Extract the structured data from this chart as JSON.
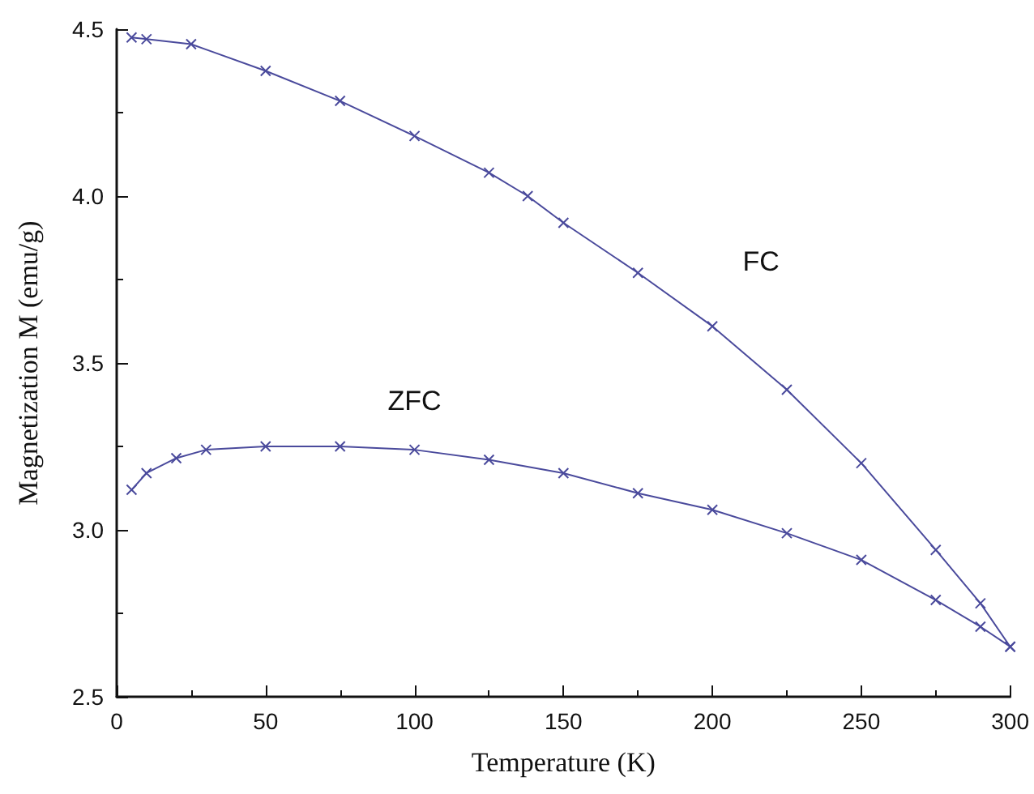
{
  "chart_data": {
    "type": "line",
    "xlabel": "Temperature (K)",
    "ylabel": "Magnetization M (emu/g)",
    "xlim": [
      0,
      300
    ],
    "xticks": [
      0,
      50,
      100,
      150,
      200,
      250,
      300
    ],
    "ylim": [
      2.5,
      4.5
    ],
    "yticks": [
      2.5,
      {
        "value": 3,
        "label": "3.0"
      },
      3.5,
      {
        "value": 4,
        "label": "4.0"
      },
      4.5
    ],
    "grid": false,
    "legend": false,
    "marker": "cross",
    "line_style": "solid",
    "series": [
      {
        "name": "FC",
        "color": "#4a4a9c",
        "x": [
          5,
          10,
          25,
          50,
          75,
          100,
          125,
          138,
          150,
          175,
          200,
          225,
          250,
          275,
          290,
          300
        ],
        "values": [
          4.475,
          4.47,
          4.455,
          4.375,
          4.285,
          4.18,
          4.07,
          4.0,
          3.92,
          3.77,
          3.61,
          3.42,
          3.2,
          2.94,
          2.78,
          2.65
        ]
      },
      {
        "name": "ZFC",
        "color": "#4a4a9c",
        "x": [
          5,
          10,
          20,
          30,
          50,
          75,
          100,
          125,
          150,
          175,
          200,
          225,
          250,
          275,
          290,
          300
        ],
        "values": [
          3.12,
          3.17,
          3.215,
          3.24,
          3.25,
          3.25,
          3.24,
          3.21,
          3.17,
          3.11,
          3.06,
          2.99,
          2.91,
          2.79,
          2.71,
          2.65
        ]
      }
    ]
  }
}
